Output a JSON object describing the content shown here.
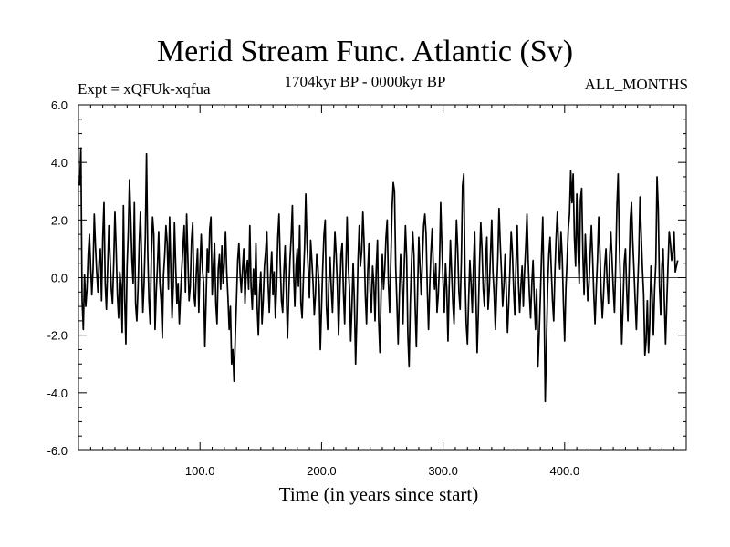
{
  "chart_data": {
    "type": "line",
    "title": "Merid Stream Func. Atlantic (Sv)",
    "subtitle_left": "Expt = xQFUk-xqfua",
    "subtitle_center": "1704kyr BP - 0000kyr BP",
    "subtitle_right": "ALL_MONTHS",
    "xlabel": "Time (in years since start)",
    "ylabel": "",
    "xlim": [
      0,
      500
    ],
    "ylim": [
      -6,
      6
    ],
    "x_ticks": [
      100,
      200,
      300,
      400
    ],
    "x_tick_labels": [
      "100.0",
      "200.0",
      "300.0",
      "400.0"
    ],
    "y_ticks": [
      -6,
      -4,
      -2,
      0,
      2,
      4,
      6
    ],
    "y_tick_labels": [
      "-6.0",
      "-4.0",
      "-2.0",
      "0.0",
      "2.0",
      "4.0",
      "6.0"
    ],
    "zero_line": true,
    "grid": false,
    "series": [
      {
        "name": "Merid Stream Func. Atlantic",
        "x_start": 1,
        "x_step": 1,
        "values": [
          3.2,
          4.5,
          -0.8,
          -1.8,
          0.1,
          -1.0,
          -0.4,
          0.8,
          1.5,
          0.4,
          -0.6,
          0.3,
          2.2,
          1.1,
          0.2,
          -0.5,
          0.6,
          1.0,
          -0.8,
          1.4,
          2.6,
          -0.2,
          -1.1,
          0.3,
          1.8,
          0.7,
          -0.4,
          -0.9,
          0.5,
          2.3,
          1.0,
          -0.6,
          -1.4,
          0.2,
          -0.3,
          -1.9,
          2.5,
          -0.7,
          -2.3,
          0.4,
          1.6,
          3.4,
          2.1,
          0.6,
          -0.2,
          2.6,
          -0.9,
          -1.5,
          -0.4,
          1.2,
          2.3,
          0.5,
          -1.2,
          -0.2,
          1.4,
          4.3,
          0.9,
          -0.8,
          -1.6,
          0.8,
          2.1,
          1.5,
          -1.8,
          -0.5,
          0.4,
          1.6,
          -0.2,
          -0.8,
          -2.1,
          0.1,
          0.8,
          1.8,
          1.2,
          -0.4,
          2.1,
          0.3,
          -1.4,
          -0.3,
          1.9,
          0.4,
          -0.9,
          -0.2,
          -1.6,
          -0.6,
          0.3,
          1.1,
          1.8,
          -0.5,
          2.2,
          0.7,
          -0.8,
          -0.3,
          1.3,
          1.9,
          -0.6,
          -1.0,
          0.2,
          1.0,
          -1.2,
          0.4,
          1.5,
          0.3,
          -0.2,
          -2.4,
          -0.8,
          1.0,
          0.2,
          1.7,
          2.1,
          -0.6,
          0.4,
          1.2,
          -0.9,
          -1.6,
          0.3,
          0.8,
          -0.4,
          1.1,
          -0.2,
          0.5,
          1.6,
          0.2,
          -0.7,
          -1.8,
          -1.0,
          -3.0,
          -2.5,
          -3.6,
          -2.1,
          -0.8,
          0.6,
          1.2,
          0.1,
          -0.5,
          0.3,
          1.0,
          -0.9,
          0.2,
          0.6,
          -0.4,
          1.8,
          -0.3,
          -1.1,
          0.3,
          -0.6,
          1.2,
          -1.0,
          -2.0,
          -0.5,
          0.2,
          -1.6,
          -0.8,
          0.4,
          0.9,
          1.6,
          -0.2,
          -1.2,
          0.1,
          0.9,
          -0.6,
          0.2,
          -1.4,
          -0.3,
          1.4,
          2.2,
          0.5,
          -0.8,
          -1.2,
          0.2,
          1.1,
          -0.5,
          -2.1,
          -0.6,
          0.6,
          1.4,
          2.5,
          0.2,
          -1.0,
          0.4,
          1.0,
          -0.3,
          1.8,
          -0.9,
          -1.4,
          -0.1,
          1.0,
          2.9,
          1.2,
          0.3,
          -0.7,
          1.3,
          0.6,
          -0.2,
          -1.3,
          -0.6,
          0.8,
          0.4,
          -0.3,
          -2.5,
          -1.0,
          0.4,
          1.5,
          2.0,
          -1.0,
          -1.8,
          -0.2,
          0.7,
          -0.4,
          -1.2,
          0.3,
          1.6,
          0.8,
          -0.3,
          -2.0,
          -0.6,
          0.8,
          1.2,
          -0.5,
          -1.6,
          0.3,
          2.1,
          0.4,
          -0.4,
          -2.2,
          -1.0,
          0.5,
          -0.8,
          -3.0,
          -1.4,
          0.6,
          1.8,
          0.4,
          0.9,
          2.3,
          1.2,
          -0.6,
          -1.6,
          0.2,
          1.2,
          -0.5,
          -1.2,
          0.4,
          -0.2,
          -1.5,
          0.3,
          1.3,
          -1.5,
          -2.6,
          -0.5,
          0.8,
          -0.4,
          0.3,
          1.4,
          2.0,
          -0.2,
          -1.2,
          0.6,
          2.4,
          3.3,
          3.0,
          0.4,
          -0.9,
          -2.3,
          -0.6,
          0.8,
          -0.1,
          -1.6,
          0.4,
          1.8,
          0.7,
          -2.0,
          -3.1,
          -0.9,
          0.5,
          1.6,
          0.8,
          -1.0,
          -2.4,
          -0.5,
          1.4,
          0.4,
          -0.6,
          0.6,
          1.8,
          2.2,
          1.5,
          -0.4,
          -1.8,
          -0.3,
          0.9,
          1.7,
          0.3,
          -0.4,
          0.5,
          -1.2,
          -0.6,
          0.4,
          2.6,
          1.1,
          -0.2,
          -1.2,
          0.5,
          -0.4,
          -2.2,
          -0.3,
          1.3,
          0.2,
          -0.9,
          -1.6,
          0.3,
          2.0,
          1.0,
          -0.5,
          -1.1,
          0.6,
          3.2,
          3.6,
          0.2,
          -1.6,
          -2.3,
          -0.8,
          0.6,
          -0.2,
          -1.2,
          0.4,
          1.6,
          -0.6,
          -2.6,
          -1.2,
          0.5,
          1.9,
          1.0,
          -0.4,
          -1.0,
          0.6,
          1.4,
          -1.1,
          -0.4,
          0.8,
          2.0,
          0.2,
          -0.6,
          -1.8,
          -0.5,
          0.7,
          2.4,
          1.2,
          0.2,
          -1.0,
          -0.3,
          0.8,
          -0.5,
          -1.9,
          -0.9,
          0.3,
          1.6,
          0.9,
          -0.4,
          -1.3,
          0.5,
          1.8,
          -0.2,
          -1.2,
          -0.3,
          0.4,
          -1.0,
          0.2,
          1.1,
          2.2,
          0.6,
          -0.6,
          -1.4,
          -0.2,
          0.6,
          -0.8,
          -1.8,
          -0.4,
          -3.1,
          -2.0,
          -0.7,
          0.8,
          2.1,
          -0.6,
          -4.3,
          -2.4,
          -0.4,
          0.8,
          1.4,
          0.3,
          -0.8,
          -1.5,
          0.2,
          1.4,
          2.3,
          1.0,
          0.3,
          1.6,
          0.7,
          -0.9,
          -2.2,
          -0.4,
          0.6,
          1.7,
          2.2,
          3.7,
          2.6,
          3.6,
          1.4,
          0.4,
          2.9,
          1.0,
          -0.2,
          2.7,
          3.1,
          0.8,
          -0.6,
          1.5,
          0.4,
          -0.8,
          -0.3,
          0.8,
          1.8,
          0.7,
          -0.6,
          -1.6,
          -0.4,
          0.6,
          2.1,
          0.9,
          -0.5,
          -1.4,
          -0.6,
          0.4,
          1.0,
          -0.2,
          -0.9,
          0.7,
          1.6,
          0.6,
          -0.4,
          -1.2,
          0.4,
          2.5,
          3.6,
          1.2,
          -0.4,
          -2.3,
          -1.0,
          0.5,
          1.0,
          -0.4,
          -1.5,
          0.2,
          2.0,
          2.6,
          1.3,
          0.3,
          -0.8,
          -1.8,
          -0.4,
          0.8,
          2.8,
          1.5,
          0.3,
          -0.6,
          -2.7,
          -2.2,
          -0.8,
          -2.6,
          -1.6,
          0.4,
          -0.6,
          -2.0,
          -0.4,
          0.5,
          3.5,
          2.4,
          -0.3,
          -1.3,
          0.4,
          1.0,
          -0.8,
          -2.3,
          -0.9,
          0.4,
          1.6,
          1.2,
          0.6,
          0.9,
          1.6,
          0.2,
          0.4,
          0.6
        ]
      }
    ]
  }
}
